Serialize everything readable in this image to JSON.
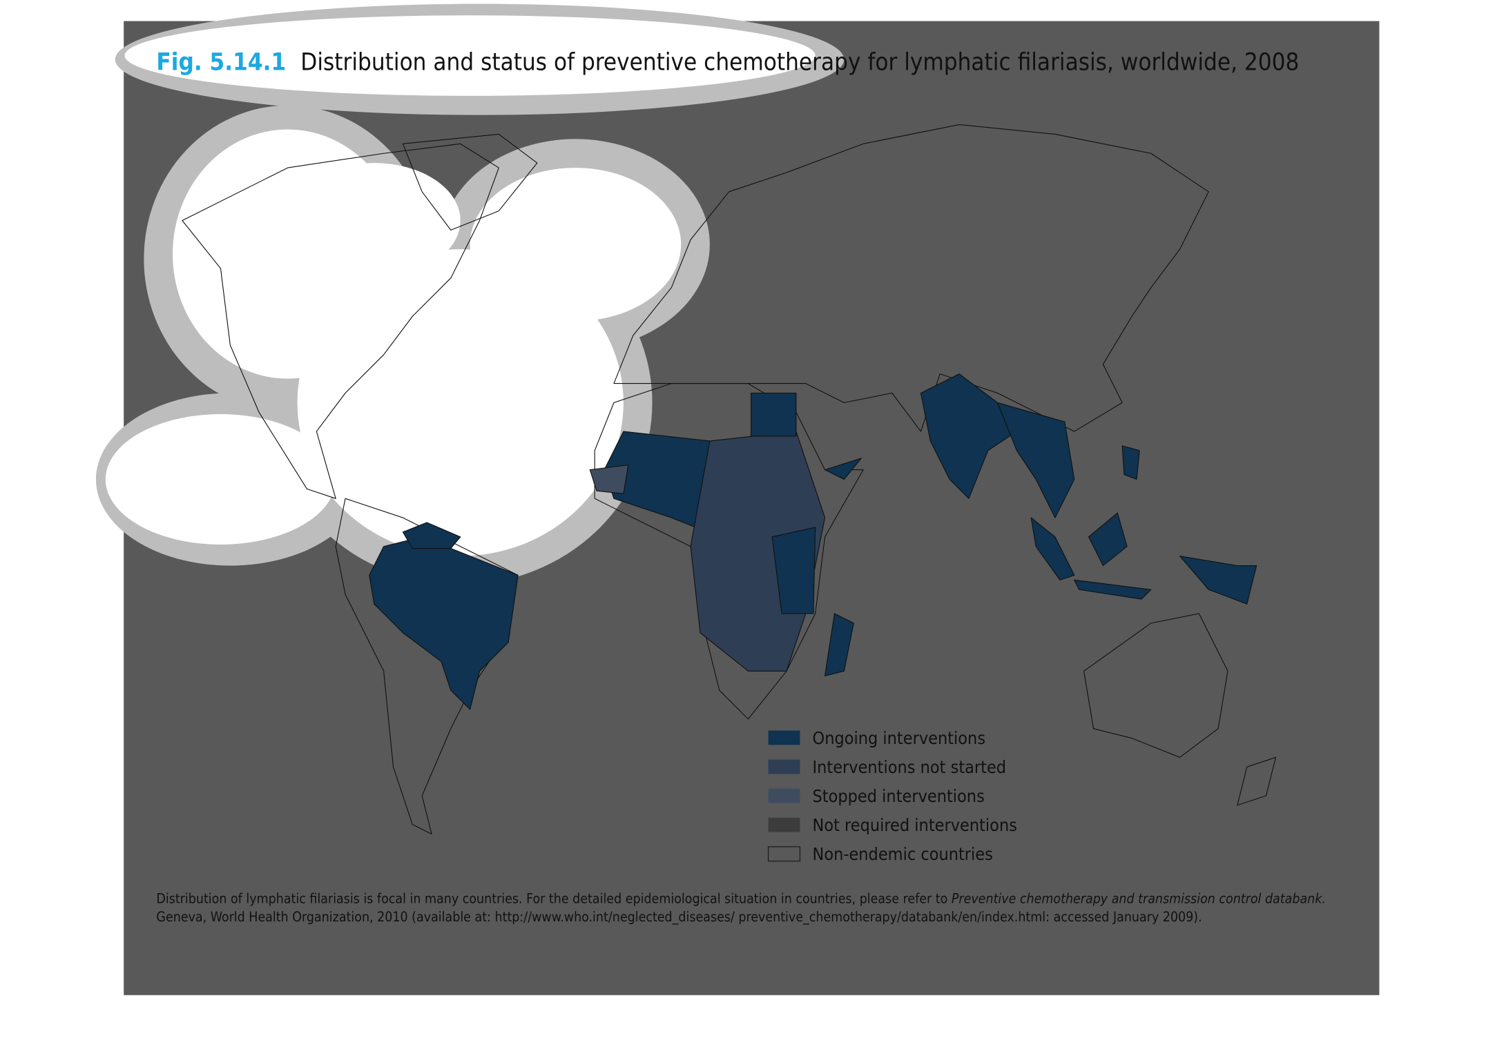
{
  "title": {
    "figure_number": "Fig. 5.14.1",
    "text": "Distribution and status of preventive chemotherapy for lymphatic filariasis, worldwide, 2008"
  },
  "legend": {
    "items": [
      {
        "label": "Ongoing interventions",
        "color": "#0f3350"
      },
      {
        "label": "Interventions not started",
        "color": "#2e3e55"
      },
      {
        "label": "Stopped interventions",
        "color": "#3f4c5f"
      },
      {
        "label": "Not required interventions",
        "color": "#3c3c3c"
      },
      {
        "label": "Non-endemic countries",
        "color": "#595959"
      }
    ]
  },
  "footnote": {
    "line1_plain": "Distribution of lymphatic filariasis is focal in many countries. For the detailed epidemiological situation in countries, please refer to ",
    "line1_italic": "Preventive chemotherapy and transmission control databank.",
    "line2": "Geneva, World Health Organization, 2010 (available at: http://www.who.int/neglected_diseases/ preventive_chemotherapy/databank/en/index.html: accessed January 2009)."
  }
}
